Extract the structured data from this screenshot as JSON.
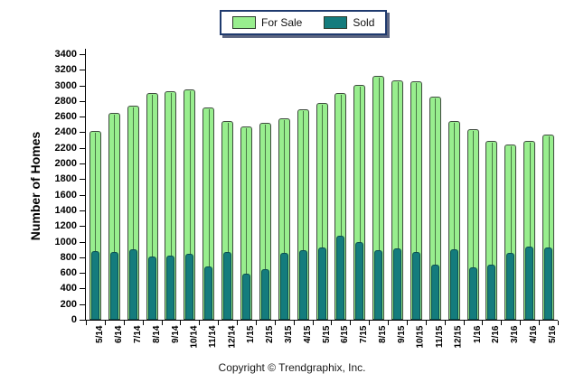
{
  "chart_data": {
    "type": "bar",
    "title": "",
    "xlabel": "",
    "ylabel": "Number of Homes",
    "ylim": [
      0,
      3400
    ],
    "ytick_step": 200,
    "yticks": [
      0,
      200,
      400,
      600,
      800,
      1000,
      1200,
      1400,
      1600,
      1800,
      2000,
      2200,
      2400,
      2600,
      2800,
      3000,
      3200,
      3400
    ],
    "grid": false,
    "legend_position": "top-center",
    "categories": [
      "5/14",
      "6/14",
      "7/14",
      "8/14",
      "9/14",
      "10/14",
      "11/14",
      "12/14",
      "1/15",
      "2/15",
      "3/15",
      "4/15",
      "5/15",
      "6/15",
      "7/15",
      "8/15",
      "9/15",
      "10/15",
      "11/15",
      "12/15",
      "1/16",
      "2/16",
      "3/16",
      "4/16",
      "5/16"
    ],
    "series": [
      {
        "name": "For Sale",
        "color": "#98ee8e",
        "values": [
          2420,
          2650,
          2740,
          2900,
          2930,
          2950,
          2720,
          2550,
          2470,
          2520,
          2580,
          2690,
          2780,
          2900,
          3010,
          3120,
          3070,
          3050,
          2860,
          2550,
          2440,
          2290,
          2240,
          2290,
          2370
        ]
      },
      {
        "name": "Sold",
        "color": "#147c7d",
        "values": [
          880,
          870,
          900,
          810,
          820,
          850,
          680,
          870,
          590,
          650,
          860,
          890,
          930,
          1080,
          1000,
          890,
          910,
          870,
          700,
          900,
          670,
          710,
          860,
          940,
          930
        ]
      }
    ]
  },
  "footer": {
    "copyright": "Copyright © Trendgraphix, Inc."
  },
  "colors": {
    "for_sale": "#98ee8e",
    "sold": "#147c7d",
    "legend_border": "#1f3a6e",
    "axis": "#000000",
    "background": "#ffffff"
  }
}
